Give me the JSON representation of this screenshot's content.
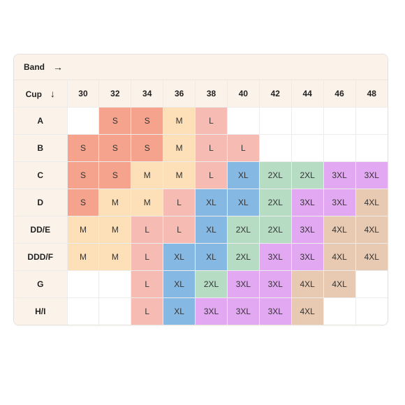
{
  "header": {
    "band_label": "Band",
    "band_arrow": "→",
    "cup_label": "Cup",
    "cup_arrow": "↓"
  },
  "bands": [
    "30",
    "32",
    "34",
    "36",
    "38",
    "40",
    "42",
    "44",
    "46",
    "48"
  ],
  "rows": [
    {
      "cup": "A",
      "cells": [
        "",
        "S",
        "S",
        "M",
        "L",
        "",
        "",
        "",
        "",
        ""
      ]
    },
    {
      "cup": "B",
      "cells": [
        "S",
        "S",
        "S",
        "M",
        "L",
        "L",
        "",
        "",
        "",
        ""
      ]
    },
    {
      "cup": "C",
      "cells": [
        "S",
        "S",
        "M",
        "M",
        "L",
        "XL",
        "2XL",
        "2XL",
        "3XL",
        "3XL"
      ]
    },
    {
      "cup": "D",
      "cells": [
        "S",
        "M",
        "M",
        "L",
        "XL",
        "XL",
        "2XL",
        "3XL",
        "3XL",
        "4XL"
      ]
    },
    {
      "cup": "DD/E",
      "cells": [
        "M",
        "M",
        "L",
        "L",
        "XL",
        "2XL",
        "2XL",
        "3XL",
        "4XL",
        "4XL"
      ]
    },
    {
      "cup": "DDD/F",
      "cells": [
        "M",
        "M",
        "L",
        "XL",
        "XL",
        "2XL",
        "3XL",
        "3XL",
        "4XL",
        "4XL"
      ]
    },
    {
      "cup": "G",
      "cells": [
        "",
        "",
        "L",
        "XL",
        "2XL",
        "3XL",
        "3XL",
        "4XL",
        "4XL",
        ""
      ]
    },
    {
      "cup": "H/I",
      "cells": [
        "",
        "",
        "L",
        "XL",
        "3XL",
        "3XL",
        "3XL",
        "4XL",
        "",
        ""
      ]
    }
  ],
  "colors": {
    "S": "#f5a38c",
    "M": "#fde0b8",
    "L": "#f6bcb4",
    "XL": "#86b8e4",
    "2XL": "#b6dcc4",
    "3XL": "#e3a8f2",
    "4XL": "#e8cab2",
    "header_bg": "#fbf3ea",
    "empty": "#ffffff"
  }
}
